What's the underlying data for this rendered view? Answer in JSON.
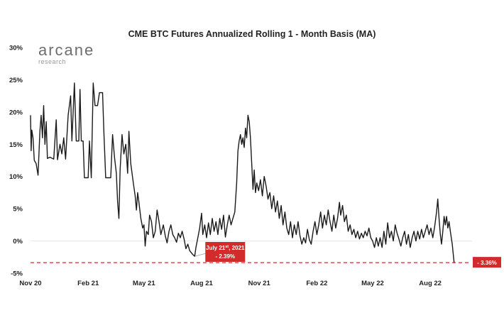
{
  "chart_data": {
    "type": "line",
    "title": "CME BTC Futures Annualized Rolling 1 - Month Basis (MA)",
    "xlabel": "",
    "ylabel": "",
    "ylim": [
      -5,
      30
    ],
    "xlim": [
      "2020-11-01",
      "2022-10-01"
    ],
    "y_ticks": [
      "30%",
      "25%",
      "20%",
      "15%",
      "10%",
      "5%",
      "0%",
      "-5%"
    ],
    "y_tick_values": [
      30,
      25,
      20,
      15,
      10,
      5,
      0,
      -5
    ],
    "x_ticks": [
      "Nov 20",
      "Feb 21",
      "May 21",
      "Aug 21",
      "Nov 21",
      "Feb 22",
      "May 22",
      "Aug 22"
    ],
    "x_tick_dates": [
      "2020-11-01",
      "2021-02-01",
      "2021-05-01",
      "2021-08-01",
      "2021-11-01",
      "2022-02-01",
      "2022-05-01",
      "2022-08-01"
    ],
    "grid": false,
    "reference_line": {
      "value": -3.36,
      "style": "dashed",
      "color": "#d12b2b"
    },
    "series": [
      {
        "color": "#1a1a1a",
        "points": [
          [
            "2020-11-01",
            19.5
          ],
          [
            "2020-11-02",
            14
          ],
          [
            "2020-11-03",
            17.2
          ],
          [
            "2020-11-05",
            16
          ],
          [
            "2020-11-07",
            12.5
          ],
          [
            "2020-11-10",
            12
          ],
          [
            "2020-11-13",
            10.2
          ],
          [
            "2020-11-16",
            17
          ],
          [
            "2020-11-18",
            19.5
          ],
          [
            "2020-11-20",
            16
          ],
          [
            "2020-11-22",
            21
          ],
          [
            "2020-11-24",
            15
          ],
          [
            "2020-11-26",
            18.5
          ],
          [
            "2020-11-28",
            12.8
          ],
          [
            "2020-12-02",
            13
          ],
          [
            "2020-12-08",
            12.7
          ],
          [
            "2020-12-12",
            18.8
          ],
          [
            "2020-12-14",
            12.6
          ],
          [
            "2020-12-18",
            15
          ],
          [
            "2020-12-21",
            13.5
          ],
          [
            "2020-12-24",
            16
          ],
          [
            "2020-12-27",
            12.7
          ],
          [
            "2020-12-31",
            19.5
          ],
          [
            "2021-01-04",
            22.5
          ],
          [
            "2021-01-06",
            15.5
          ],
          [
            "2021-01-10",
            24.5
          ],
          [
            "2021-01-13",
            15.5
          ],
          [
            "2021-01-17",
            15.5
          ],
          [
            "2021-01-19",
            23.5
          ],
          [
            "2021-01-21",
            15.5
          ],
          [
            "2021-01-24",
            15.5
          ],
          [
            "2021-01-26",
            9.8
          ],
          [
            "2021-02-01",
            9.8
          ],
          [
            "2021-02-03",
            15.5
          ],
          [
            "2021-02-06",
            9.8
          ],
          [
            "2021-02-09",
            24.5
          ],
          [
            "2021-02-12",
            21
          ],
          [
            "2021-02-16",
            21
          ],
          [
            "2021-02-19",
            23
          ],
          [
            "2021-02-24",
            23
          ],
          [
            "2021-02-26",
            17
          ],
          [
            "2021-03-01",
            9.8
          ],
          [
            "2021-03-05",
            9.8
          ],
          [
            "2021-03-09",
            9.8
          ],
          [
            "2021-03-12",
            16.5
          ],
          [
            "2021-03-15",
            13
          ],
          [
            "2021-03-18",
            10.5
          ],
          [
            "2021-03-20",
            6
          ],
          [
            "2021-03-22",
            3.5
          ],
          [
            "2021-03-24",
            11
          ],
          [
            "2021-03-27",
            16.5
          ],
          [
            "2021-03-30",
            13.5
          ],
          [
            "2021-04-02",
            15
          ],
          [
            "2021-04-05",
            10.5
          ],
          [
            "2021-04-07",
            17
          ],
          [
            "2021-04-10",
            12
          ],
          [
            "2021-04-14",
            9
          ],
          [
            "2021-04-17",
            7
          ],
          [
            "2021-04-19",
            4.8
          ],
          [
            "2021-04-21",
            7.5
          ],
          [
            "2021-04-23",
            6
          ],
          [
            "2021-04-26",
            3.5
          ],
          [
            "2021-04-29",
            2
          ],
          [
            "2021-05-01",
            2.5
          ],
          [
            "2021-05-03",
            -0.8
          ],
          [
            "2021-05-05",
            1.5
          ],
          [
            "2021-05-08",
            1
          ],
          [
            "2021-05-10",
            4
          ],
          [
            "2021-05-13",
            3
          ],
          [
            "2021-05-16",
            0.5
          ],
          [
            "2021-05-19",
            1.5
          ],
          [
            "2021-05-22",
            4.8
          ],
          [
            "2021-05-25",
            3
          ],
          [
            "2021-05-28",
            1
          ],
          [
            "2021-06-01",
            2.5
          ],
          [
            "2021-06-04",
            0.8
          ],
          [
            "2021-06-07",
            -0.3
          ],
          [
            "2021-06-10",
            1.5
          ],
          [
            "2021-06-13",
            2.5
          ],
          [
            "2021-06-16",
            1
          ],
          [
            "2021-06-19",
            0.5
          ],
          [
            "2021-06-22",
            -0.2
          ],
          [
            "2021-06-25",
            1.2
          ],
          [
            "2021-06-28",
            0.5
          ],
          [
            "2021-07-01",
            1.5
          ],
          [
            "2021-07-04",
            0.3
          ],
          [
            "2021-07-07",
            -1.2
          ],
          [
            "2021-07-10",
            -0.5
          ],
          [
            "2021-07-13",
            -1.5
          ],
          [
            "2021-07-17",
            -2
          ],
          [
            "2021-07-21",
            -2.39
          ],
          [
            "2021-07-23",
            -1
          ],
          [
            "2021-07-26",
            0.5
          ],
          [
            "2021-07-29",
            2
          ],
          [
            "2021-08-01",
            4.3
          ],
          [
            "2021-08-03",
            1
          ],
          [
            "2021-08-06",
            2.5
          ],
          [
            "2021-08-09",
            0.5
          ],
          [
            "2021-08-12",
            2.8
          ],
          [
            "2021-08-15",
            1
          ],
          [
            "2021-08-18",
            3.5
          ],
          [
            "2021-08-21",
            1.5
          ],
          [
            "2021-08-24",
            3
          ],
          [
            "2021-08-27",
            1
          ],
          [
            "2021-08-30",
            3.5
          ],
          [
            "2021-09-02",
            1.8
          ],
          [
            "2021-09-05",
            4
          ],
          [
            "2021-09-08",
            0.6
          ],
          [
            "2021-09-11",
            2.5
          ],
          [
            "2021-09-14",
            4
          ],
          [
            "2021-09-17",
            2.5
          ],
          [
            "2021-09-20",
            3.5
          ],
          [
            "2021-09-23",
            4.5
          ],
          [
            "2021-09-26",
            9
          ],
          [
            "2021-09-28",
            14
          ],
          [
            "2021-09-30",
            15.5
          ],
          [
            "2021-10-02",
            16.5
          ],
          [
            "2021-10-04",
            15
          ],
          [
            "2021-10-06",
            16
          ],
          [
            "2021-10-08",
            14.5
          ],
          [
            "2021-10-10",
            17.5
          ],
          [
            "2021-10-12",
            16
          ],
          [
            "2021-10-14",
            19.5
          ],
          [
            "2021-10-16",
            18.5
          ],
          [
            "2021-10-18",
            16
          ],
          [
            "2021-10-20",
            12
          ],
          [
            "2021-10-22",
            8
          ],
          [
            "2021-10-24",
            11
          ],
          [
            "2021-10-26",
            7.5
          ],
          [
            "2021-10-28",
            9
          ],
          [
            "2021-10-31",
            7.8
          ],
          [
            "2021-11-03",
            9.5
          ],
          [
            "2021-11-06",
            7
          ],
          [
            "2021-11-09",
            10
          ],
          [
            "2021-11-12",
            8.5
          ],
          [
            "2021-11-15",
            6.5
          ],
          [
            "2021-11-18",
            7.5
          ],
          [
            "2021-11-21",
            5
          ],
          [
            "2021-11-24",
            7
          ],
          [
            "2021-11-27",
            4.5
          ],
          [
            "2021-11-30",
            6.2
          ],
          [
            "2021-12-03",
            3.5
          ],
          [
            "2021-12-06",
            5.5
          ],
          [
            "2021-12-09",
            2.5
          ],
          [
            "2021-12-12",
            4.5
          ],
          [
            "2021-12-15",
            2
          ],
          [
            "2021-12-18",
            1
          ],
          [
            "2021-12-21",
            3
          ],
          [
            "2021-12-24",
            0.5
          ],
          [
            "2021-12-27",
            2.5
          ],
          [
            "2021-12-30",
            1
          ],
          [
            "2022-01-02",
            3
          ],
          [
            "2022-01-05",
            0.8
          ],
          [
            "2022-01-08",
            -0.5
          ],
          [
            "2022-01-11",
            0.5
          ],
          [
            "2022-01-14",
            -0.3
          ],
          [
            "2022-01-17",
            1.8
          ],
          [
            "2022-01-20",
            0.2
          ],
          [
            "2022-01-23",
            -0.5
          ],
          [
            "2022-01-26",
            1.5
          ],
          [
            "2022-01-29",
            3
          ],
          [
            "2022-02-01",
            1
          ],
          [
            "2022-02-04",
            2.5
          ],
          [
            "2022-02-07",
            4.5
          ],
          [
            "2022-02-10",
            2
          ],
          [
            "2022-02-13",
            4
          ],
          [
            "2022-02-16",
            2.5
          ],
          [
            "2022-02-19",
            4.8
          ],
          [
            "2022-02-22",
            3
          ],
          [
            "2022-02-25",
            1.5
          ],
          [
            "2022-02-28",
            4
          ],
          [
            "2022-03-03",
            2
          ],
          [
            "2022-03-06",
            3.5
          ],
          [
            "2022-03-09",
            6
          ],
          [
            "2022-03-11",
            4
          ],
          [
            "2022-03-14",
            5.5
          ],
          [
            "2022-03-17",
            3
          ],
          [
            "2022-03-20",
            4
          ],
          [
            "2022-03-23",
            1.5
          ],
          [
            "2022-03-26",
            2.5
          ],
          [
            "2022-03-29",
            1
          ],
          [
            "2022-04-01",
            1.8
          ],
          [
            "2022-04-04",
            0.5
          ],
          [
            "2022-04-07",
            1.5
          ],
          [
            "2022-04-10",
            0.3
          ],
          [
            "2022-04-13",
            1.2
          ],
          [
            "2022-04-16",
            0.5
          ],
          [
            "2022-04-19",
            1.5
          ],
          [
            "2022-04-22",
            0.8
          ],
          [
            "2022-04-25",
            2
          ],
          [
            "2022-04-28",
            0.5
          ],
          [
            "2022-05-01",
            0
          ],
          [
            "2022-05-04",
            -1
          ],
          [
            "2022-05-07",
            0.5
          ],
          [
            "2022-05-10",
            -0.8
          ],
          [
            "2022-05-13",
            0.5
          ],
          [
            "2022-05-16",
            -1
          ],
          [
            "2022-05-19",
            1.5
          ],
          [
            "2022-05-22",
            -0.5
          ],
          [
            "2022-05-25",
            2.8
          ],
          [
            "2022-05-28",
            0.5
          ],
          [
            "2022-05-31",
            1.5
          ],
          [
            "2022-06-03",
            0
          ],
          [
            "2022-06-06",
            2.5
          ],
          [
            "2022-06-09",
            1.2
          ],
          [
            "2022-06-12",
            0.3
          ],
          [
            "2022-06-15",
            -0.8
          ],
          [
            "2022-06-18",
            0.5
          ],
          [
            "2022-06-21",
            1.5
          ],
          [
            "2022-06-24",
            -0.5
          ],
          [
            "2022-06-27",
            1
          ],
          [
            "2022-06-30",
            -1
          ],
          [
            "2022-07-03",
            0.5
          ],
          [
            "2022-07-06",
            1.5
          ],
          [
            "2022-07-09",
            0
          ],
          [
            "2022-07-12",
            1.5
          ],
          [
            "2022-07-15",
            0.3
          ],
          [
            "2022-07-18",
            1.8
          ],
          [
            "2022-07-21",
            0.5
          ],
          [
            "2022-07-24",
            1.5
          ],
          [
            "2022-07-27",
            2.5
          ],
          [
            "2022-07-30",
            1
          ],
          [
            "2022-08-02",
            2
          ],
          [
            "2022-08-05",
            0.5
          ],
          [
            "2022-08-08",
            2.2
          ],
          [
            "2022-08-11",
            4.5
          ],
          [
            "2022-08-13",
            6.5
          ],
          [
            "2022-08-15",
            3.5
          ],
          [
            "2022-08-17",
            1
          ],
          [
            "2022-08-19",
            -0.5
          ],
          [
            "2022-08-21",
            1.5
          ],
          [
            "2022-08-23",
            3.8
          ],
          [
            "2022-08-25",
            2.5
          ],
          [
            "2022-08-27",
            3.8
          ],
          [
            "2022-08-29",
            2
          ],
          [
            "2022-08-31",
            3
          ],
          [
            "2022-09-02",
            1.5
          ],
          [
            "2022-09-05",
            -0.5
          ],
          [
            "2022-09-08",
            -3.36
          ]
        ]
      }
    ],
    "annotations": [
      {
        "date": "2021-07-21",
        "value": -2.39,
        "label_date": "July 21",
        "label_date_suffix": "st",
        "label_date_year": ", 2021",
        "label_value": "- 2.39%"
      },
      {
        "date": "2022-09-08",
        "value": -3.36,
        "label_value": "- 3.36%"
      }
    ]
  },
  "logo": {
    "word": "arcane",
    "sub": "research"
  },
  "colors": {
    "line": "#1a1a1a",
    "accent": "#d12b2b",
    "text": "#222222"
  }
}
